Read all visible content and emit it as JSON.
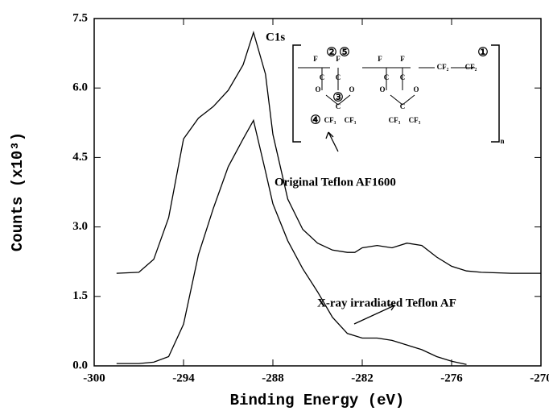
{
  "chart_data": {
    "type": "line",
    "xlabel": "Binding Energy (eV)",
    "ylabel": "Counts (x10³)",
    "annotations": [
      "C1s",
      "Original Teflon AF1600",
      "X-ray irradiated Teflon AF"
    ],
    "inset_labels": [
      "F",
      "F",
      "F",
      "F",
      "C",
      "C",
      "C",
      "C",
      "O",
      "O",
      "O",
      "O",
      "C",
      "C",
      "CF₂",
      "CF₂",
      "CF₃",
      "CF₃",
      "CF₃",
      "CF₃",
      "①",
      "②",
      "③",
      "④",
      "⑤",
      "n"
    ],
    "x": [
      -298.5,
      -297,
      -296,
      -295,
      -294,
      -293,
      -292,
      -291,
      -290,
      -289.3,
      -288.5,
      -288,
      -287,
      -286,
      -285,
      -284,
      -283,
      -282.5,
      -282,
      -281,
      -280,
      -279,
      -278,
      -277,
      -276,
      -275,
      -274,
      -272,
      -270
    ],
    "series": [
      {
        "color": "#000000",
        "values": [
          2.0,
          2.02,
          2.3,
          3.2,
          4.9,
          5.35,
          5.6,
          5.95,
          6.5,
          7.2,
          6.3,
          5.0,
          3.6,
          2.95,
          2.65,
          2.5,
          2.45,
          2.45,
          2.55,
          2.6,
          2.55,
          2.65,
          2.6,
          2.35,
          2.15,
          2.05,
          2.02,
          2.0,
          2.0
        ]
      },
      {
        "color": "#000000",
        "values": [
          0.05,
          0.05,
          0.08,
          0.2,
          0.9,
          2.4,
          3.4,
          4.3,
          4.9,
          5.3,
          4.2,
          3.5,
          2.7,
          2.1,
          1.6,
          1.05,
          0.7,
          0.65,
          0.6,
          0.6,
          0.55,
          0.45,
          0.35,
          0.2,
          0.1,
          0.03,
          null,
          null,
          null
        ]
      }
    ],
    "xlim": [
      -300,
      -270
    ],
    "xticks": [
      -300,
      -294,
      -288,
      -282,
      -276,
      -270
    ],
    "ylim": [
      0,
      7.5
    ],
    "yticks": [
      {
        "value": 0,
        "label": "0.0"
      },
      1.5,
      {
        "value": 3,
        "label": "3.0"
      },
      4.5,
      {
        "value": 6,
        "label": "6.0"
      },
      7.5
    ]
  }
}
